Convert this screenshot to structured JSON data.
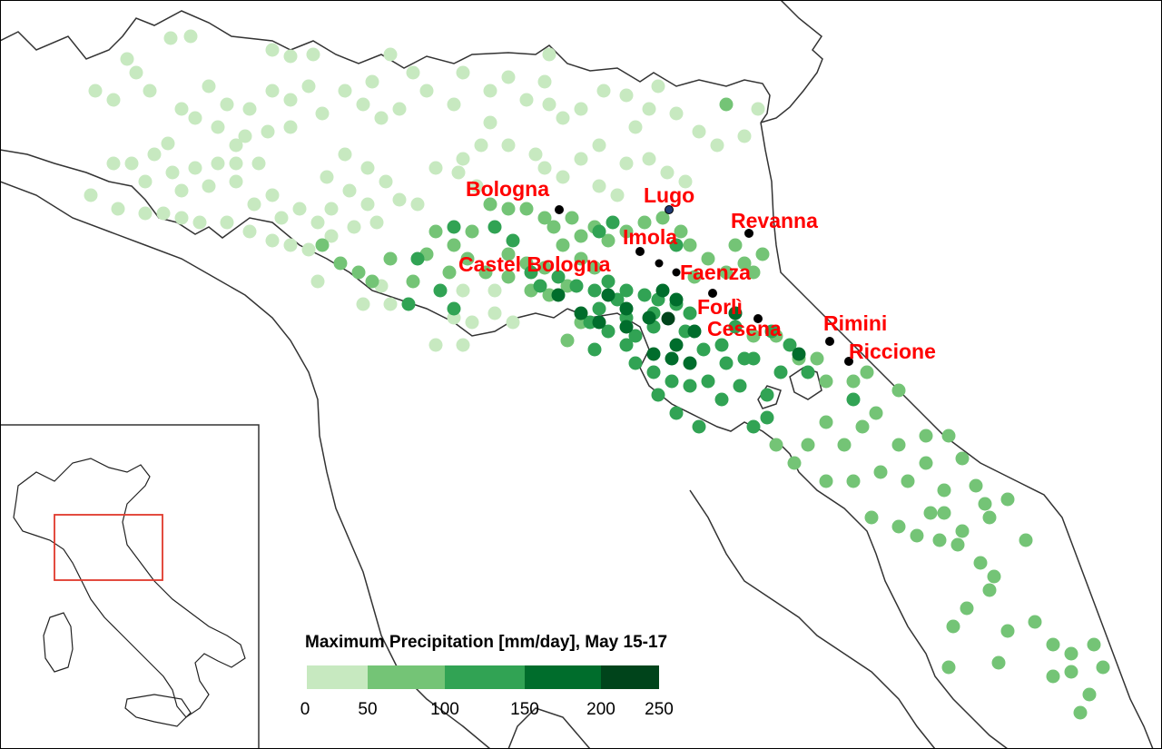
{
  "legend": {
    "title": "Maximum Precipitation [mm/day], May 15-17",
    "ticks": [
      "0",
      "50",
      "100",
      "150",
      "200",
      "250"
    ],
    "bins": [
      {
        "range": "0-50",
        "color": "#c7e9c0"
      },
      {
        "range": "50-100",
        "color": "#74c476"
      },
      {
        "range": "100-150",
        "color": "#31a354"
      },
      {
        "range": "150-200",
        "color": "#006d2c"
      },
      {
        "range": "200-250",
        "color": "#00441b"
      }
    ]
  },
  "cities": [
    {
      "name": "Bologna",
      "marker_color": "#000000"
    },
    {
      "name": "Lugo",
      "marker_color": "#1f3b73"
    },
    {
      "name": "Revanna",
      "marker_color": "#000000"
    },
    {
      "name": "Imola",
      "marker_color": "#000000"
    },
    {
      "name": "Castel Bologna",
      "marker_color": "#000000"
    },
    {
      "name": "Faenza",
      "marker_color": "#000000"
    },
    {
      "name": "Forlì",
      "marker_color": "#000000"
    },
    {
      "name": "Cesena",
      "marker_color": "#000000"
    },
    {
      "name": "Rimini",
      "marker_color": "#000000"
    },
    {
      "name": "Riccione",
      "marker_color": "#000000"
    }
  ],
  "colors": {
    "label": "#ff0000",
    "boundary": "#333333",
    "inset_box": "#e0392b"
  }
}
